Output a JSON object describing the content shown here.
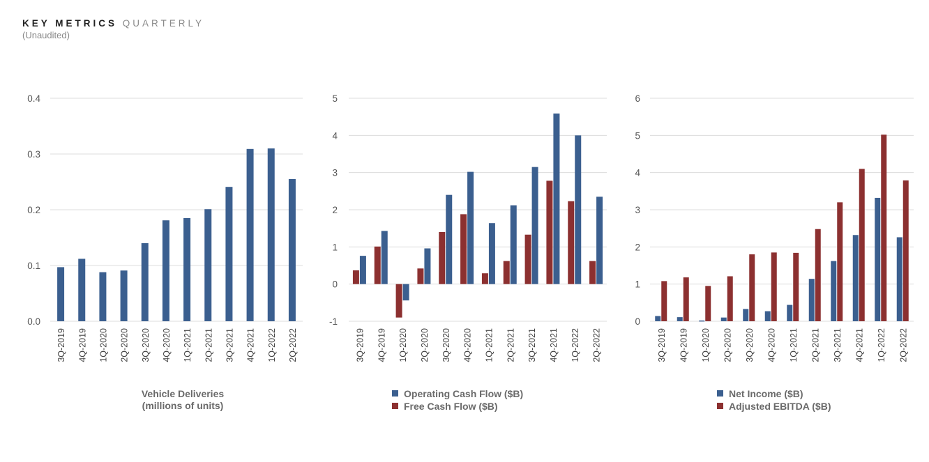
{
  "header": {
    "title_bold": "KEY METRICS",
    "title_light": "QUARTERLY",
    "subtitle": "(Unaudited)"
  },
  "colors": {
    "blue": "#3b5f8f",
    "red": "#8c3030",
    "grid": "#dcdcdc"
  },
  "chart_data": [
    {
      "type": "bar",
      "title": "",
      "caption": [
        "Vehicle Deliveries",
        "(millions of units)"
      ],
      "categories": [
        "3Q-2019",
        "4Q-2019",
        "1Q-2020",
        "2Q-2020",
        "3Q-2020",
        "4Q-2020",
        "1Q-2021",
        "2Q-2021",
        "3Q-2021",
        "4Q-2021",
        "1Q-2022",
        "2Q-2022"
      ],
      "series": [
        {
          "name": "Vehicle Deliveries",
          "color": "#3b5f8f",
          "values": [
            0.097,
            0.112,
            0.088,
            0.091,
            0.14,
            0.181,
            0.185,
            0.201,
            0.241,
            0.309,
            0.31,
            0.255
          ]
        }
      ],
      "ylim": [
        0,
        0.4
      ],
      "yticks": [
        "0.0",
        "0.1",
        "0.2",
        "0.3",
        "0.4"
      ],
      "legend": []
    },
    {
      "type": "bar",
      "title": "",
      "caption": [],
      "categories": [
        "3Q-2019",
        "4Q-2019",
        "1Q-2020",
        "2Q-2020",
        "3Q-2020",
        "4Q-2020",
        "1Q-2021",
        "2Q-2021",
        "3Q-2021",
        "4Q-2021",
        "1Q-2022",
        "2Q-2022"
      ],
      "series": [
        {
          "name": "Free Cash Flow ($B)",
          "color": "#8c3030",
          "values": [
            0.37,
            1.01,
            -0.9,
            0.42,
            1.4,
            1.88,
            0.29,
            0.62,
            1.33,
            2.78,
            2.23,
            0.62
          ]
        },
        {
          "name": "Operating Cash Flow ($B)",
          "color": "#3b5f8f",
          "values": [
            0.76,
            1.43,
            -0.44,
            0.96,
            2.4,
            3.02,
            1.64,
            2.12,
            3.15,
            4.59,
            4.0,
            2.35
          ]
        }
      ],
      "ylim": [
        -1,
        5
      ],
      "yticks": [
        "-1",
        "0",
        "1",
        "2",
        "3",
        "4",
        "5"
      ],
      "legend": [
        {
          "label": "Operating Cash Flow ($B)",
          "color": "#3b5f8f"
        },
        {
          "label": "Free Cash Flow ($B)",
          "color": "#8c3030"
        }
      ]
    },
    {
      "type": "bar",
      "title": "",
      "caption": [],
      "categories": [
        "3Q-2019",
        "4Q-2019",
        "1Q-2020",
        "2Q-2020",
        "3Q-2020",
        "4Q-2020",
        "1Q-2021",
        "2Q-2021",
        "3Q-2021",
        "4Q-2021",
        "1Q-2022",
        "2Q-2022"
      ],
      "series": [
        {
          "name": "Net Income ($B)",
          "color": "#3b5f8f",
          "values": [
            0.14,
            0.11,
            0.02,
            0.1,
            0.33,
            0.27,
            0.44,
            1.14,
            1.62,
            2.32,
            3.32,
            2.26
          ]
        },
        {
          "name": "Adjusted EBITDA ($B)",
          "color": "#8c3030",
          "values": [
            1.08,
            1.18,
            0.95,
            1.21,
            1.8,
            1.85,
            1.84,
            2.48,
            3.2,
            4.1,
            5.02,
            3.79
          ]
        }
      ],
      "ylim": [
        0,
        6
      ],
      "yticks": [
        "0",
        "1",
        "2",
        "3",
        "4",
        "5",
        "6"
      ],
      "legend": [
        {
          "label": "Net Income ($B)",
          "color": "#3b5f8f"
        },
        {
          "label": "Adjusted EBITDA ($B)",
          "color": "#8c3030"
        }
      ]
    }
  ]
}
